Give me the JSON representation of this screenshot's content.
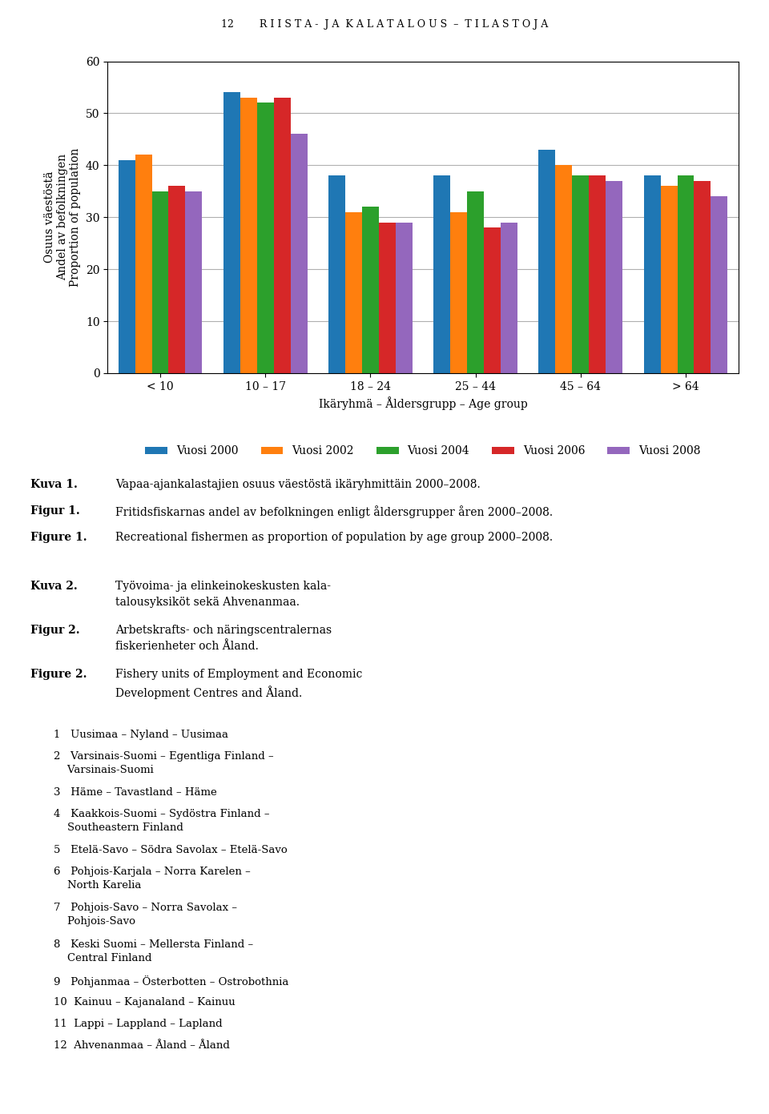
{
  "chart_data": {
    "type": "bar",
    "categories": [
      "< 10",
      "10 – 17",
      "18 – 24",
      "25 – 44",
      "45 – 64",
      "> 64"
    ],
    "xlabel": "Ikäryhmä – Åldersgrupp – Age group",
    "ylabel": "Osuus väestöstä\nAndel av befolkningen\nProportion of population",
    "ylim": [
      0,
      60
    ],
    "yticks": [
      0,
      10,
      20,
      30,
      40,
      50,
      60
    ],
    "grid": true,
    "legend": "upper center",
    "series": [
      {
        "name": "Vuosi 2000",
        "values": [
          41,
          54,
          38,
          38,
          43,
          38
        ]
      },
      {
        "name": "Vuosi 2002",
        "values": [
          42,
          53,
          31,
          31,
          40,
          36
        ]
      },
      {
        "name": "Vuosi 2004",
        "values": [
          35,
          52,
          32,
          35,
          38,
          38
        ]
      },
      {
        "name": "Vuosi 2006",
        "values": [
          36,
          53,
          29,
          28,
          38,
          37
        ]
      },
      {
        "name": "Vuosi 2008",
        "values": [
          35,
          46,
          29,
          29,
          37,
          34
        ]
      }
    ],
    "annotations": {
      "header": "12        R I I S T A -  J A  K A L A T A L O U S  –  T I L A S T O J A",
      "captions": [
        {
          "label": "Kuva 1.",
          "text": "Vapaa-ajankalastajien osuus väestöstä ikäryhmittäin 2000–2008."
        },
        {
          "label": "Figur 1.",
          "text": "Fritidsfiskarnas andel av befolkningen enligt åldersgrupper åren 2000–2008."
        },
        {
          "label": "Figure 1.",
          "text": "Recreational fishermen as proportion of population by age group 2000–2008."
        },
        {
          "label": "Kuva 2.",
          "text": "Työvoima- ja elinkeinokeskusten kala-\ntalousyksiköt sekä Ahvenanmaa."
        },
        {
          "label": "Figur 2.",
          "text": "Arbetskrafts- och näringscentralernas\nfiskerienheter och Åland."
        },
        {
          "label": "Figure 2.",
          "text": "Fishery units of Employment and Economic\nDevelopment Centres and Åland."
        }
      ],
      "regions": [
        "1   Uusimaa – Nyland – Uusimaa",
        "2   Varsinais-Suomi – Egentliga Finland –\n    Varsinais-Suomi",
        "3   Häme – Tavastland – Häme",
        "4   Kaakkois-Suomi – Sydöstra Finland –\n    Southeastern Finland",
        "5   Etelä-Savo – Södra Savolax – Etelä-Savo",
        "6   Pohjois-Karjala – Norra Karelen –\n    North Karelia",
        "7   Pohjois-Savo – Norra Savolax –\n    Pohjois-Savo",
        "8   Keski Suomi – Mellersta Finland –\n    Central Finland",
        "9   Pohjanmaa – Österbotten – Ostrobothnia",
        "10  Kainuu – Kajanaland – Kainuu",
        "11  Lappi – Lappland – Lapland",
        "12  Ahvenanmaa – Åland – Åland"
      ]
    }
  }
}
